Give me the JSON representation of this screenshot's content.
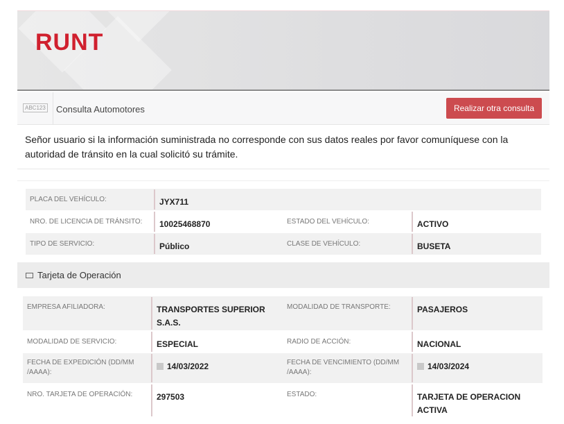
{
  "header": {
    "logo": "RUNT"
  },
  "toolbar": {
    "icon_text": "ABC123",
    "title": "Consulta Automotores",
    "button": "Realizar otra consulta"
  },
  "message": "Señor usuario si la información suministrada no corresponde con sus datos reales por favor comuníquese con la autoridad de tránsito en la cual solicitó su trámite.",
  "vehicle": {
    "placa_label": "PLACA DEL VEHÍCULO:",
    "placa": "JYX711",
    "licencia_label": "NRO. DE LICENCIA DE TRÁNSITO:",
    "licencia": "10025468870",
    "estado_label": "ESTADO DEL VEHÍCULO:",
    "estado": "ACTIVO",
    "servicio_label": "TIPO DE SERVICIO:",
    "servicio": "Público",
    "clase_label": "CLASE DE VEHÍCULO:",
    "clase": "BUSETA"
  },
  "section": {
    "title": "Tarjeta de Operación"
  },
  "tarjeta": {
    "empresa_label": "EMPRESA AFILIADORA:",
    "empresa": "TRANSPORTES SUPERIOR S.A.S.",
    "modalidad_transporte_label": "MODALIDAD DE TRANSPORTE:",
    "modalidad_transporte": "PASAJEROS",
    "modalidad_servicio_label": "MODALIDAD DE SERVICIO:",
    "modalidad_servicio": "ESPECIAL",
    "radio_label": "RADIO DE ACCIÓN:",
    "radio": "NACIONAL",
    "expedicion_label": "FECHA DE EXPEDICIÓN (DD/MM /AAAA):",
    "expedicion": "14/03/2022",
    "vencimiento_label": "FECHA DE VENCIMIENTO (DD/MM /AAAA):",
    "vencimiento": "14/03/2024",
    "numero_label": "NRO. TARJETA DE OPERACIÓN:",
    "numero": "297503",
    "estado_label": "ESTADO:",
    "estado": "TARJETA DE OPERACION ACTIVA"
  }
}
